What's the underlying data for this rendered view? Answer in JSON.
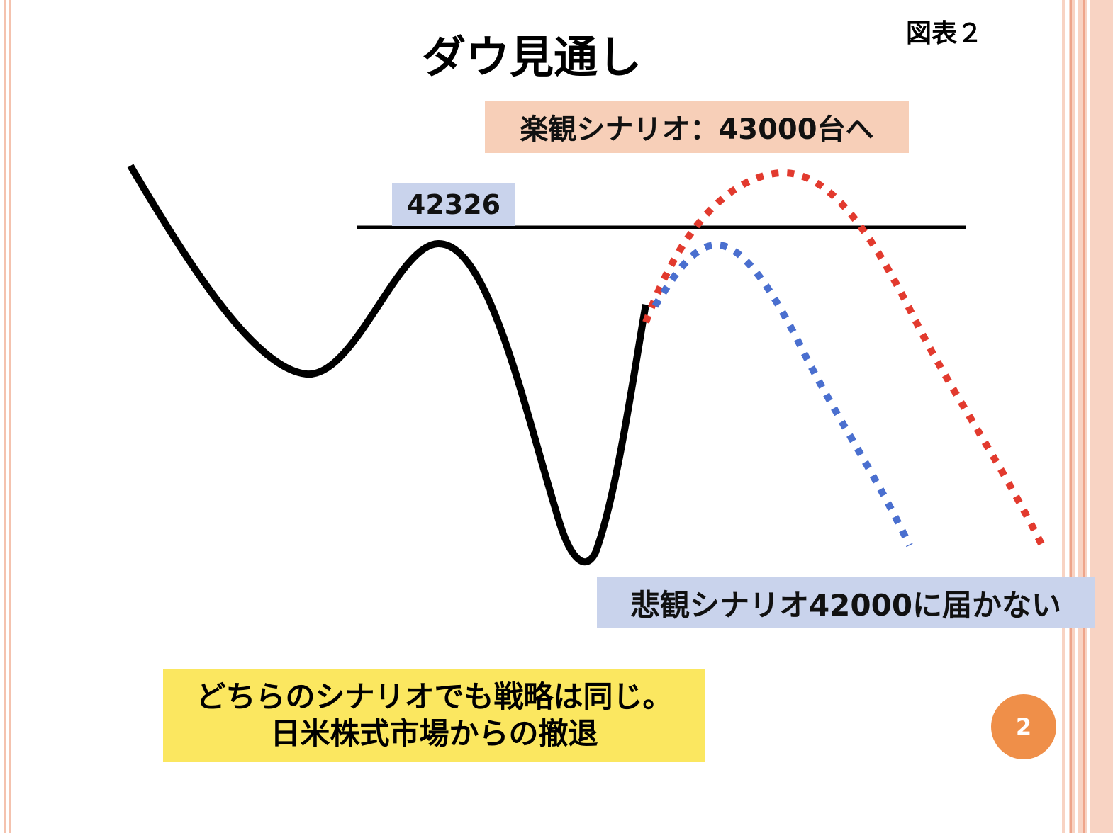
{
  "title": "ダウ見通し",
  "figure_label": "図表２",
  "optimistic_label": "楽観シナリオ：43000台へ",
  "resistance_label": "42326",
  "pessimistic_label": "悲観シナリオ42000に届かない",
  "conclusion": {
    "line1": "どちらのシナリオでも戦略は同じ。",
    "line2": "日米株式市場からの撤退"
  },
  "page_number": "2",
  "colors": {
    "actual_path": "#000000",
    "optimistic_path": "#e23a2e",
    "pessimistic_path": "#4a6fcf",
    "optimistic_box": "#f7cfb8",
    "pessimistic_box": "#c9d3ec",
    "conclusion_box": "#fbe760",
    "page_badge": "#ef8f49"
  }
}
